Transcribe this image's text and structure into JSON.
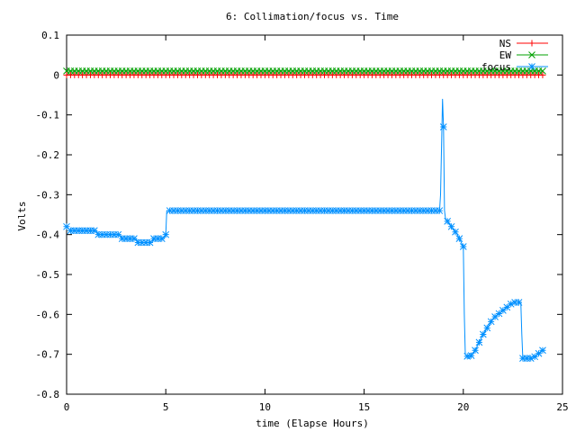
{
  "chart_data": {
    "type": "line",
    "title": "6: Collimation/focus vs. Time",
    "xlabel": "time (Elapse Hours)",
    "ylabel": "Volts",
    "xlim": [
      0,
      25
    ],
    "ylim": [
      -0.8,
      0.1
    ],
    "xticks": [
      "0",
      "5",
      "10",
      "15",
      "20",
      "25"
    ],
    "yticks": [
      "0.1",
      "0",
      "-0.1",
      "-0.2",
      "-0.3",
      "-0.4",
      "-0.5",
      "-0.6",
      "-0.7",
      "-0.8"
    ],
    "grid": false,
    "legend_position": "top-right",
    "series": [
      {
        "name": "NS",
        "color": "#ff0000",
        "marker": "plus",
        "x": [
          0,
          24
        ],
        "y": [
          0.0,
          0.0
        ]
      },
      {
        "name": "EW",
        "color": "#00a000",
        "marker": "cross",
        "x": [
          0,
          24
        ],
        "y": [
          0.01,
          0.01
        ]
      },
      {
        "name": "focus",
        "color": "#0090ff",
        "marker": "star",
        "x": [
          0,
          0.2,
          1.5,
          1.6,
          2.7,
          2.8,
          3.5,
          3.6,
          4.3,
          4.4,
          4.9,
          5.0,
          5.05,
          18.7,
          18.8,
          18.85,
          18.95,
          19.0,
          19.05,
          19.1,
          19.4,
          19.7,
          20.0,
          20.05,
          20.1,
          20.3,
          20.6,
          21.0,
          21.5,
          22.0,
          22.5,
          22.9,
          22.95,
          23.0,
          23.5,
          24.0
        ],
        "y": [
          -0.38,
          -0.39,
          -0.39,
          -0.4,
          -0.4,
          -0.41,
          -0.41,
          -0.42,
          -0.42,
          -0.41,
          -0.41,
          -0.4,
          -0.34,
          -0.34,
          -0.34,
          -0.3,
          -0.06,
          -0.13,
          -0.34,
          -0.36,
          -0.38,
          -0.4,
          -0.43,
          -0.6,
          -0.7,
          -0.71,
          -0.69,
          -0.65,
          -0.61,
          -0.59,
          -0.57,
          -0.57,
          -0.65,
          -0.71,
          -0.71,
          -0.69
        ]
      }
    ]
  }
}
